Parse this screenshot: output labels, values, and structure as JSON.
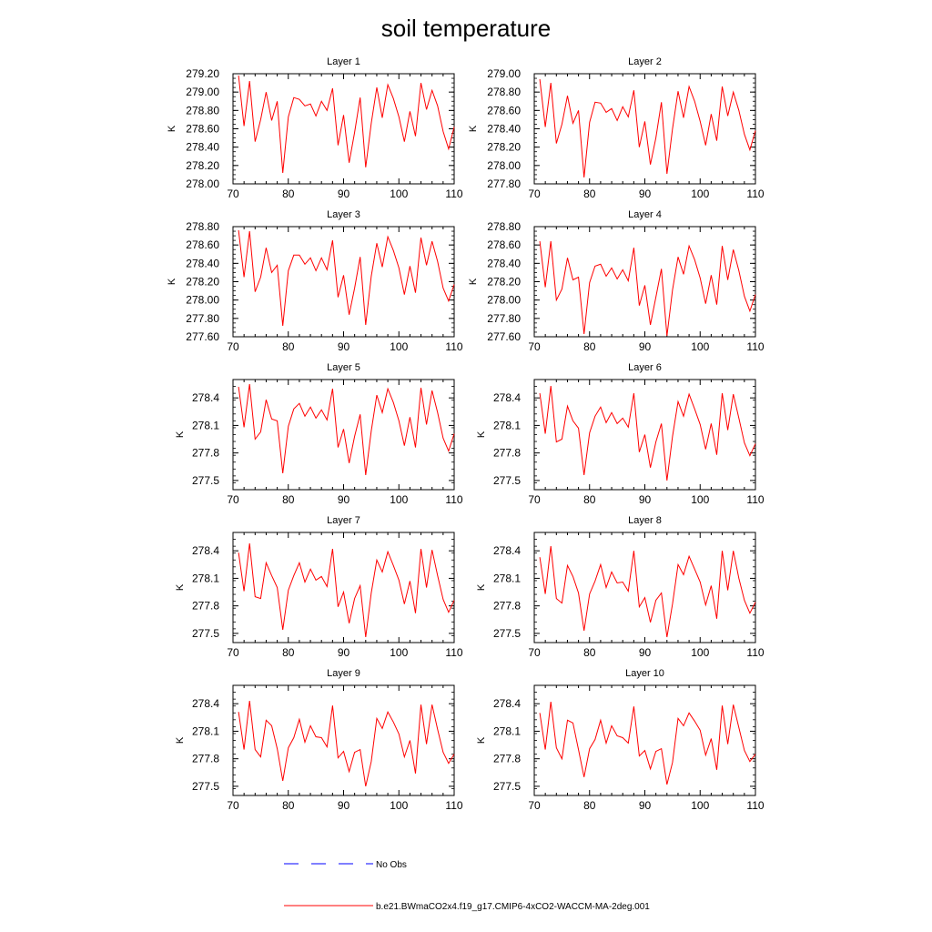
{
  "title": "soil temperature",
  "legend": [
    {
      "label": "No Obs",
      "color": "#0000ff",
      "dashed": true
    },
    {
      "label": "b.e21.BWmaCO2x4.f19_g17.CMIP6-4xCO2-WACCM-MA-2deg.001",
      "color": "#ff0000",
      "dashed": false
    }
  ],
  "chart_data": [
    {
      "type": "line",
      "title": "Layer 1",
      "ylabel": "K",
      "xlim": [
        70,
        110
      ],
      "ylim": [
        278.0,
        279.2
      ],
      "xticks": [
        70,
        80,
        90,
        100,
        110
      ],
      "yticks": [
        "278.00",
        "278.20",
        "278.40",
        "278.60",
        "278.80",
        "279.00",
        "279.20"
      ],
      "x": [
        71,
        72,
        73,
        74,
        75,
        76,
        77,
        78,
        79,
        80,
        81,
        82,
        83,
        84,
        85,
        86,
        87,
        88,
        89,
        90,
        91,
        92,
        93,
        94,
        95,
        96,
        97,
        98,
        99,
        100,
        101,
        102,
        103,
        104,
        105,
        106,
        107,
        108,
        109,
        110
      ],
      "series": [
        {
          "color": "#ff0000",
          "values": [
            279.18,
            278.63,
            279.12,
            278.46,
            278.7,
            279.0,
            278.69,
            278.9,
            278.12,
            278.73,
            278.94,
            278.92,
            278.85,
            278.87,
            278.74,
            278.9,
            278.8,
            279.04,
            278.42,
            278.75,
            278.23,
            278.56,
            278.94,
            278.18,
            278.66,
            279.05,
            278.72,
            279.08,
            278.93,
            278.73,
            278.46,
            278.79,
            278.52,
            279.1,
            278.81,
            279.02,
            278.85,
            278.57,
            278.38,
            278.62
          ]
        }
      ]
    },
    {
      "type": "line",
      "title": "Layer 2",
      "ylabel": "K",
      "xlim": [
        70,
        110
      ],
      "ylim": [
        277.8,
        279.0
      ],
      "xticks": [
        70,
        80,
        90,
        100,
        110
      ],
      "yticks": [
        "277.80",
        "278.00",
        "278.20",
        "278.40",
        "278.60",
        "278.80",
        "279.00"
      ],
      "x": [
        71,
        72,
        73,
        74,
        75,
        76,
        77,
        78,
        79,
        80,
        81,
        82,
        83,
        84,
        85,
        86,
        87,
        88,
        89,
        90,
        91,
        92,
        93,
        94,
        95,
        96,
        97,
        98,
        99,
        100,
        101,
        102,
        103,
        104,
        105,
        106,
        107,
        108,
        109,
        110
      ],
      "series": [
        {
          "color": "#ff0000",
          "values": [
            278.94,
            278.42,
            278.9,
            278.24,
            278.45,
            278.76,
            278.46,
            278.6,
            277.87,
            278.47,
            278.69,
            278.68,
            278.58,
            278.62,
            278.49,
            278.64,
            278.53,
            278.82,
            278.2,
            278.48,
            278.01,
            278.3,
            278.69,
            277.91,
            278.4,
            278.81,
            278.52,
            278.86,
            278.7,
            278.48,
            278.22,
            278.56,
            278.27,
            278.86,
            278.54,
            278.8,
            278.6,
            278.34,
            278.17,
            278.38
          ]
        }
      ]
    },
    {
      "type": "line",
      "title": "Layer 3",
      "ylabel": "K",
      "xlim": [
        70,
        110
      ],
      "ylim": [
        277.6,
        278.8
      ],
      "xticks": [
        70,
        80,
        90,
        100,
        110
      ],
      "yticks": [
        "277.60",
        "277.80",
        "278.00",
        "278.20",
        "278.40",
        "278.60",
        "278.80"
      ],
      "x": [
        71,
        72,
        73,
        74,
        75,
        76,
        77,
        78,
        79,
        80,
        81,
        82,
        83,
        84,
        85,
        86,
        87,
        88,
        89,
        90,
        91,
        92,
        93,
        94,
        95,
        96,
        97,
        98,
        99,
        100,
        101,
        102,
        103,
        104,
        105,
        106,
        107,
        108,
        109,
        110
      ],
      "series": [
        {
          "color": "#ff0000",
          "values": [
            278.76,
            278.25,
            278.75,
            278.09,
            278.25,
            278.57,
            278.3,
            278.38,
            277.72,
            278.32,
            278.49,
            278.49,
            278.39,
            278.46,
            278.32,
            278.46,
            278.33,
            278.65,
            278.03,
            278.27,
            277.84,
            278.13,
            278.47,
            277.73,
            278.26,
            278.62,
            278.36,
            278.69,
            278.54,
            278.35,
            278.06,
            278.37,
            278.08,
            278.68,
            278.38,
            278.64,
            278.42,
            278.13,
            277.99,
            278.17
          ]
        }
      ]
    },
    {
      "type": "line",
      "title": "Layer 4",
      "ylabel": "K",
      "xlim": [
        70,
        110
      ],
      "ylim": [
        277.6,
        278.8
      ],
      "xticks": [
        70,
        80,
        90,
        100,
        110
      ],
      "yticks": [
        "277.60",
        "277.80",
        "278.00",
        "278.20",
        "278.40",
        "278.60",
        "278.80"
      ],
      "x": [
        71,
        72,
        73,
        74,
        75,
        76,
        77,
        78,
        79,
        80,
        81,
        82,
        83,
        84,
        85,
        86,
        87,
        88,
        89,
        90,
        91,
        92,
        93,
        94,
        95,
        96,
        97,
        98,
        99,
        100,
        101,
        102,
        103,
        104,
        105,
        106,
        107,
        108,
        109,
        110
      ],
      "series": [
        {
          "color": "#ff0000",
          "values": [
            278.64,
            278.14,
            278.64,
            278.0,
            278.12,
            278.46,
            278.22,
            278.25,
            277.63,
            278.19,
            278.37,
            278.39,
            278.26,
            278.35,
            278.23,
            278.33,
            278.21,
            278.57,
            277.94,
            278.16,
            277.73,
            278.03,
            278.34,
            277.61,
            278.11,
            278.47,
            278.28,
            278.59,
            278.44,
            278.24,
            277.96,
            278.27,
            277.95,
            278.59,
            278.22,
            278.55,
            278.32,
            278.04,
            277.88,
            278.06
          ]
        }
      ]
    },
    {
      "type": "line",
      "title": "Layer 5",
      "ylabel": "K",
      "xlim": [
        70,
        110
      ],
      "ylim": [
        277.4,
        278.6
      ],
      "xticks": [
        70,
        80,
        90,
        100,
        110
      ],
      "yticks": [
        "277.5",
        "277.8",
        "278.1",
        "278.4"
      ],
      "x": [
        71,
        72,
        73,
        74,
        75,
        76,
        77,
        78,
        79,
        80,
        81,
        82,
        83,
        84,
        85,
        86,
        87,
        88,
        89,
        90,
        91,
        92,
        93,
        94,
        95,
        96,
        97,
        98,
        99,
        100,
        101,
        102,
        103,
        104,
        105,
        106,
        107,
        108,
        109,
        110
      ],
      "series": [
        {
          "color": "#ff0000",
          "values": [
            278.52,
            278.08,
            278.55,
            277.95,
            278.03,
            278.38,
            278.17,
            278.15,
            277.58,
            278.09,
            278.28,
            278.34,
            278.2,
            278.3,
            278.18,
            278.27,
            278.16,
            278.5,
            277.86,
            278.06,
            277.69,
            277.98,
            278.22,
            277.56,
            278.04,
            278.43,
            278.24,
            278.5,
            278.35,
            278.15,
            277.88,
            278.19,
            277.86,
            278.51,
            278.11,
            278.48,
            278.24,
            277.96,
            277.82,
            278.01
          ]
        }
      ]
    },
    {
      "type": "line",
      "title": "Layer 6",
      "ylabel": "K",
      "xlim": [
        70,
        110
      ],
      "ylim": [
        277.4,
        278.6
      ],
      "xticks": [
        70,
        80,
        90,
        100,
        110
      ],
      "yticks": [
        "277.5",
        "277.8",
        "278.1",
        "278.4"
      ],
      "x": [
        71,
        72,
        73,
        74,
        75,
        76,
        77,
        78,
        79,
        80,
        81,
        82,
        83,
        84,
        85,
        86,
        87,
        88,
        89,
        90,
        91,
        92,
        93,
        94,
        95,
        96,
        97,
        98,
        99,
        100,
        101,
        102,
        103,
        104,
        105,
        106,
        107,
        108,
        109,
        110
      ],
      "series": [
        {
          "color": "#ff0000",
          "values": [
            278.45,
            278.01,
            278.53,
            277.92,
            277.95,
            278.31,
            278.15,
            278.07,
            277.56,
            278.02,
            278.2,
            278.3,
            278.13,
            278.24,
            278.12,
            278.18,
            278.08,
            278.45,
            277.81,
            278.0,
            277.64,
            277.92,
            278.12,
            277.5,
            277.98,
            278.36,
            278.2,
            278.44,
            278.28,
            278.11,
            277.84,
            278.12,
            277.78,
            278.45,
            278.05,
            278.44,
            278.18,
            277.91,
            277.77,
            277.9
          ]
        }
      ]
    },
    {
      "type": "line",
      "title": "Layer 7",
      "ylabel": "K",
      "xlim": [
        70,
        110
      ],
      "ylim": [
        277.4,
        278.6
      ],
      "xticks": [
        70,
        80,
        90,
        100,
        110
      ],
      "yticks": [
        "277.5",
        "277.8",
        "278.1",
        "278.4"
      ],
      "x": [
        71,
        72,
        73,
        74,
        75,
        76,
        77,
        78,
        79,
        80,
        81,
        82,
        83,
        84,
        85,
        86,
        87,
        88,
        89,
        90,
        91,
        92,
        93,
        94,
        95,
        96,
        97,
        98,
        99,
        100,
        101,
        102,
        103,
        104,
        105,
        106,
        107,
        108,
        109,
        110
      ],
      "series": [
        {
          "color": "#ff0000",
          "values": [
            278.38,
            277.96,
            278.48,
            277.9,
            277.88,
            278.27,
            278.13,
            278.0,
            277.54,
            277.97,
            278.13,
            278.27,
            278.06,
            278.2,
            278.08,
            278.12,
            278.01,
            278.42,
            277.79,
            277.95,
            277.61,
            277.88,
            278.02,
            277.46,
            277.94,
            278.3,
            278.17,
            278.39,
            278.24,
            278.08,
            277.82,
            278.07,
            277.72,
            278.42,
            278.0,
            278.41,
            278.13,
            277.87,
            277.73,
            277.86
          ]
        }
      ]
    },
    {
      "type": "line",
      "title": "Layer 8",
      "ylabel": "K",
      "xlim": [
        70,
        110
      ],
      "ylim": [
        277.4,
        278.6
      ],
      "xticks": [
        70,
        80,
        90,
        100,
        110
      ],
      "yticks": [
        "277.5",
        "277.8",
        "278.1",
        "278.4"
      ],
      "x": [
        71,
        72,
        73,
        74,
        75,
        76,
        77,
        78,
        79,
        80,
        81,
        82,
        83,
        84,
        85,
        86,
        87,
        88,
        89,
        90,
        91,
        92,
        93,
        94,
        95,
        96,
        97,
        98,
        99,
        100,
        101,
        102,
        103,
        104,
        105,
        106,
        107,
        108,
        109,
        110
      ],
      "series": [
        {
          "color": "#ff0000",
          "values": [
            278.33,
            277.93,
            278.45,
            277.88,
            277.83,
            278.24,
            278.12,
            277.94,
            277.53,
            277.93,
            278.07,
            278.25,
            278.0,
            278.17,
            278.05,
            278.06,
            277.96,
            278.4,
            277.79,
            277.89,
            277.62,
            277.86,
            277.94,
            277.46,
            277.82,
            278.25,
            278.14,
            278.34,
            278.2,
            278.06,
            277.81,
            278.02,
            277.66,
            278.4,
            277.97,
            278.4,
            278.1,
            277.86,
            277.72,
            277.84
          ]
        }
      ]
    },
    {
      "type": "line",
      "title": "Layer 9",
      "ylabel": "K",
      "xlim": [
        70,
        110
      ],
      "ylim": [
        277.4,
        278.6
      ],
      "xticks": [
        70,
        80,
        90,
        100,
        110
      ],
      "yticks": [
        "277.5",
        "277.8",
        "278.1",
        "278.4"
      ],
      "x": [
        71,
        72,
        73,
        74,
        75,
        76,
        77,
        78,
        79,
        80,
        81,
        82,
        83,
        84,
        85,
        86,
        87,
        88,
        89,
        90,
        91,
        92,
        93,
        94,
        95,
        96,
        97,
        98,
        99,
        100,
        101,
        102,
        103,
        104,
        105,
        106,
        107,
        108,
        109,
        110
      ],
      "series": [
        {
          "color": "#ff0000",
          "values": [
            278.31,
            277.9,
            278.43,
            277.9,
            277.82,
            278.22,
            278.16,
            277.91,
            277.56,
            277.92,
            278.03,
            278.23,
            277.98,
            278.16,
            278.04,
            278.03,
            277.93,
            278.38,
            277.81,
            277.88,
            277.66,
            277.87,
            277.9,
            277.5,
            277.77,
            278.24,
            278.13,
            278.31,
            278.2,
            278.07,
            277.82,
            278.0,
            277.64,
            278.39,
            277.96,
            278.39,
            278.12,
            277.87,
            277.75,
            277.85
          ]
        }
      ]
    },
    {
      "type": "line",
      "title": "Layer 10",
      "ylabel": "K",
      "xlim": [
        70,
        110
      ],
      "ylim": [
        277.4,
        278.6
      ],
      "xticks": [
        70,
        80,
        90,
        100,
        110
      ],
      "yticks": [
        "277.5",
        "277.8",
        "278.1",
        "278.4"
      ],
      "x": [
        71,
        72,
        73,
        74,
        75,
        76,
        77,
        78,
        79,
        80,
        81,
        82,
        83,
        84,
        85,
        86,
        87,
        88,
        89,
        90,
        91,
        92,
        93,
        94,
        95,
        96,
        97,
        98,
        99,
        100,
        101,
        102,
        103,
        104,
        105,
        106,
        107,
        108,
        109,
        110
      ],
      "series": [
        {
          "color": "#ff0000",
          "values": [
            278.3,
            277.9,
            278.42,
            277.92,
            277.8,
            278.22,
            278.19,
            277.9,
            277.6,
            277.91,
            278.01,
            278.22,
            277.97,
            278.16,
            278.05,
            278.03,
            277.97,
            278.37,
            277.83,
            277.89,
            277.69,
            277.88,
            277.91,
            277.52,
            277.76,
            278.24,
            278.16,
            278.3,
            278.21,
            278.11,
            277.84,
            278.02,
            277.68,
            278.38,
            277.96,
            278.39,
            278.14,
            277.89,
            277.77,
            277.85
          ]
        }
      ]
    }
  ]
}
